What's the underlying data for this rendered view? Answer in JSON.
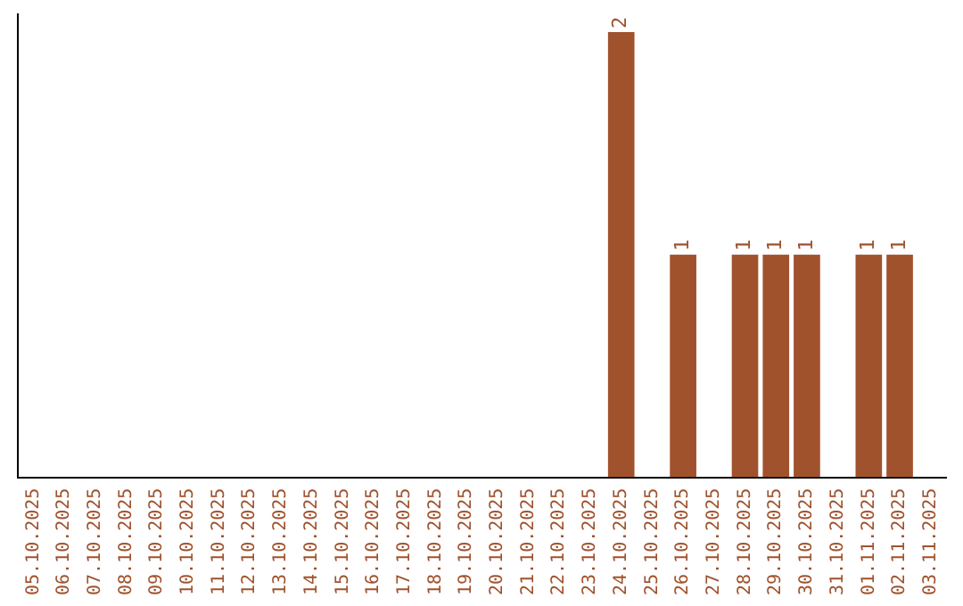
{
  "chart_data": {
    "type": "bar",
    "categories": [
      "05.10.2025",
      "06.10.2025",
      "07.10.2025",
      "08.10.2025",
      "09.10.2025",
      "10.10.2025",
      "11.10.2025",
      "12.10.2025",
      "13.10.2025",
      "14.10.2025",
      "15.10.2025",
      "16.10.2025",
      "17.10.2025",
      "18.10.2025",
      "19.10.2025",
      "20.10.2025",
      "21.10.2025",
      "22.10.2025",
      "23.10.2025",
      "24.10.2025",
      "25.10.2025",
      "26.10.2025",
      "27.10.2025",
      "28.10.2025",
      "29.10.2025",
      "30.10.2025",
      "31.10.2025",
      "01.11.2025",
      "02.11.2025",
      "03.11.2025"
    ],
    "values": [
      null,
      null,
      null,
      null,
      null,
      null,
      null,
      null,
      null,
      null,
      null,
      null,
      null,
      null,
      null,
      null,
      null,
      null,
      null,
      2,
      null,
      1,
      null,
      1,
      1,
      1,
      null,
      1,
      1,
      null
    ],
    "color": "#a0522d",
    "ylim": [
      0,
      2.08
    ],
    "tick_labels": "x",
    "data_labels": true,
    "grid": false,
    "legend": false
  }
}
